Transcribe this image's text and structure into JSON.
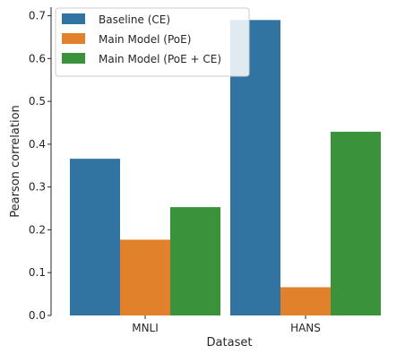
{
  "chart_data": {
    "type": "bar",
    "title": "",
    "xlabel": "Dataset",
    "ylabel": "Pearson correlation",
    "categories": [
      "MNLI",
      "HANS"
    ],
    "series": [
      {
        "name": "Baseline (CE)",
        "color": "#3274a1",
        "values": [
          0.366,
          0.69
        ]
      },
      {
        "name": "Main Model (PoE)",
        "color": "#e1812c",
        "values": [
          0.177,
          0.066
        ]
      },
      {
        "name": "Main Model (PoE + CE)",
        "color": "#3a923a",
        "values": [
          0.253,
          0.429
        ]
      }
    ],
    "ylim": [
      0,
      0.72
    ],
    "yticks": [
      "0.0",
      "0.1",
      "0.2",
      "0.3",
      "0.4",
      "0.5",
      "0.6",
      "0.7"
    ],
    "grid": false,
    "legend_position": "top-left"
  }
}
